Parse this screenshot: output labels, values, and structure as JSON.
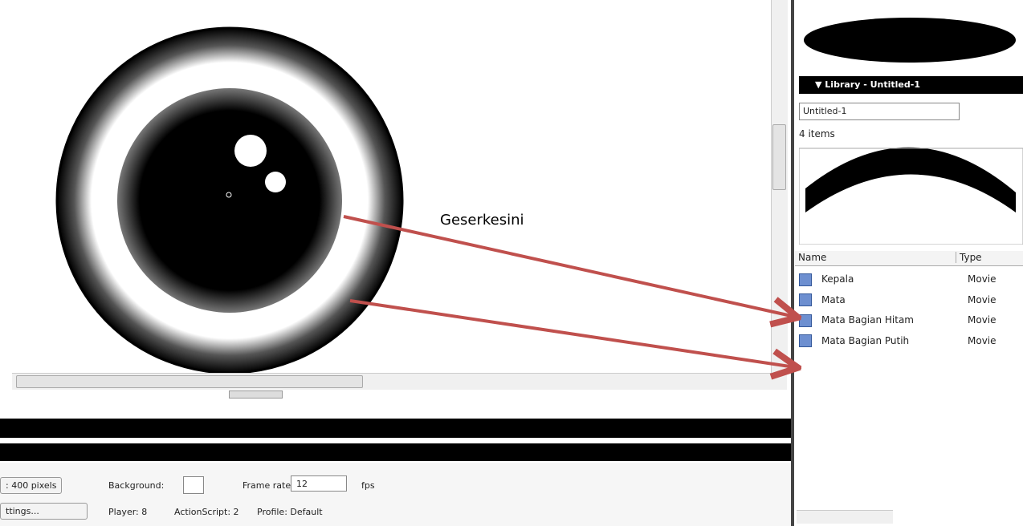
{
  "stage": {
    "annotation": "Geserkesini"
  },
  "library": {
    "title": "▼ Library - Untitled-1",
    "document": "Untitled-1",
    "count": "4 items",
    "columns": [
      "Name",
      "Type"
    ],
    "rows": [
      {
        "name": "Kepala",
        "type": "Movie"
      },
      {
        "name": "Mata",
        "type": "Movie"
      },
      {
        "name": "Mata Bagian Hitam",
        "type": "Movie"
      },
      {
        "name": "Mata Bagian Putih",
        "type": "Movie"
      }
    ]
  },
  "properties": {
    "size": ": 400 pixels",
    "background": "Background:",
    "frame_rate_label": "Frame rate:",
    "frame_rate": "12",
    "fps": "fps",
    "settings": "ttings...",
    "player": "Player: 8",
    "actionscript": "ActionScript: 2",
    "profile": "Profile: Default"
  }
}
